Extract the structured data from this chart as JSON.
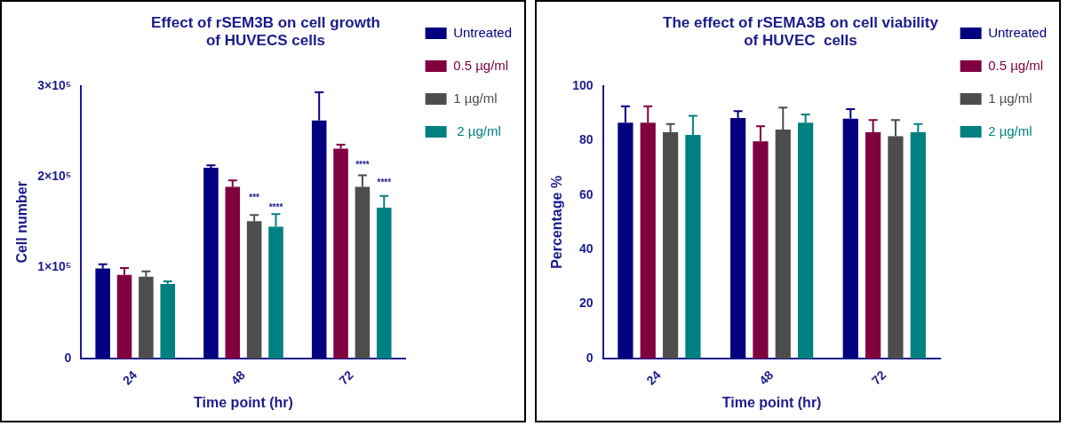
{
  "chart_data": [
    {
      "type": "bar",
      "title": "Effect of rSEM3B on cell growth of HUVECS cells",
      "xlabel": "Time point (hr)",
      "ylabel": "Cell number",
      "categories": [
        "24",
        "48",
        "72"
      ],
      "series": [
        {
          "name": "Untreated",
          "color": "#000080",
          "values": [
            99000,
            210000,
            262000
          ],
          "errors": [
            4600,
            2500,
            31000
          ]
        },
        {
          "name": "0.5 µg/ml",
          "color": "#800040",
          "values": [
            92000,
            189000,
            231000
          ],
          "errors": [
            7500,
            7000,
            4400
          ]
        },
        {
          "name": "1 µg/ml",
          "color": "#4d4d4d",
          "values": [
            90000,
            151000,
            189000
          ],
          "errors": [
            6000,
            7000,
            12700
          ]
        },
        {
          "name": " 2 µg/ml",
          "color": "#008080",
          "values": [
            82000,
            145000,
            166000
          ],
          "errors": [
            3000,
            14000,
            13000
          ]
        }
      ],
      "ylim": [
        0,
        300000
      ],
      "yticks": [
        0,
        {
          "value": 100000,
          "label": "1×10⁵"
        },
        {
          "value": 200000,
          "label": "2×10⁵"
        },
        {
          "value": 300000,
          "label": "3×10⁵"
        }
      ],
      "annotations": [
        {
          "text": "***",
          "x": "48",
          "y": 174000
        },
        {
          "text": "****",
          "x": "48",
          "y": 163000
        },
        {
          "text": "****",
          "x": "72",
          "y": 210000
        },
        {
          "text": "****",
          "x": "72",
          "y": 190000
        }
      ],
      "grid": false,
      "legend": "right"
    },
    {
      "type": "bar",
      "title": "The effect of rSEMA3B on cell viability of HUVEC  cells",
      "xlabel": "Time point (hr)",
      "ylabel": "Percentage %",
      "categories": [
        "24",
        "48",
        "72"
      ],
      "series": [
        {
          "name": "Untreated",
          "color": "#000080",
          "values": [
            86.5,
            88.2,
            88
          ],
          "errors": [
            6,
            2.5,
            3.5
          ]
        },
        {
          "name": "0.5 µg/ml",
          "color": "#800040",
          "values": [
            86.5,
            79.7,
            83
          ],
          "errors": [
            6,
            5.5,
            4.5
          ]
        },
        {
          "name": "1 µg/ml",
          "color": "#4d4d4d",
          "values": [
            83,
            84,
            81.5
          ],
          "errors": [
            3,
            8,
            6
          ]
        },
        {
          "name": "2 µg/ml",
          "color": "#008080",
          "values": [
            82,
            86.5,
            83
          ],
          "errors": [
            7,
            3,
            3
          ]
        }
      ],
      "ylim": [
        0,
        100
      ],
      "yticks": [
        0,
        20,
        40,
        60,
        80,
        100
      ],
      "grid": false,
      "legend": "right"
    }
  ]
}
